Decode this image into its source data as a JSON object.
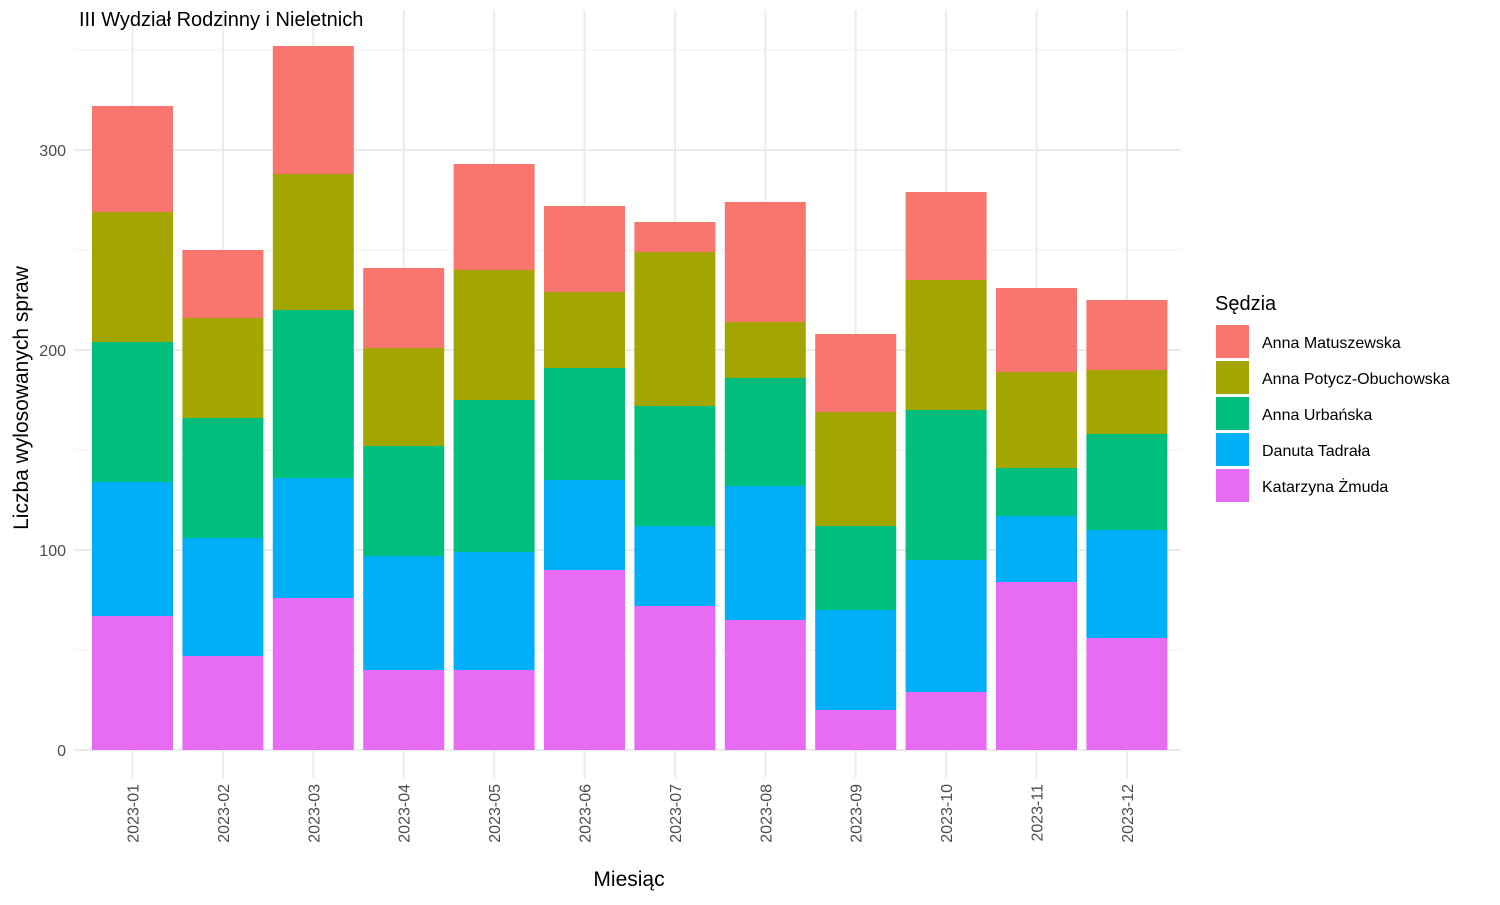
{
  "chart_data": {
    "type": "bar",
    "stacked": true,
    "title": "III Wydział Rodzinny i Nieletnich",
    "xlabel": "Miesiąc",
    "ylabel": "Liczba wylosowanych spraw",
    "ylim": [
      0,
      360
    ],
    "yticks": [
      0,
      100,
      200,
      300
    ],
    "grid": true,
    "legend": {
      "title": "Sędzia",
      "placement": "right"
    },
    "categories": [
      "2023-01",
      "2023-02",
      "2023-03",
      "2023-04",
      "2023-05",
      "2023-06",
      "2023-07",
      "2023-08",
      "2023-09",
      "2023-10",
      "2023-11",
      "2023-12"
    ],
    "series": [
      {
        "name": "Katarzyna Żmuda",
        "color": "#E76BF3",
        "values": [
          67,
          47,
          76,
          40,
          40,
          90,
          72,
          65,
          20,
          29,
          84,
          56
        ]
      },
      {
        "name": "Danuta Tadrała",
        "color": "#00B0F6",
        "values": [
          67,
          59,
          60,
          57,
          59,
          45,
          40,
          67,
          50,
          66,
          33,
          54
        ]
      },
      {
        "name": "Anna Urbańska",
        "color": "#00BF7D",
        "values": [
          70,
          60,
          84,
          55,
          76,
          56,
          60,
          54,
          42,
          75,
          24,
          48
        ]
      },
      {
        "name": "Anna Potycz-Obuchowska",
        "color": "#A3A500",
        "values": [
          65,
          50,
          68,
          49,
          65,
          38,
          77,
          28,
          57,
          65,
          48,
          32
        ]
      },
      {
        "name": "Anna Matuszewska",
        "color": "#F8766D",
        "values": [
          53,
          34,
          64,
          40,
          53,
          43,
          15,
          60,
          39,
          44,
          42,
          35
        ]
      }
    ],
    "legend_order": [
      "Anna Matuszewska",
      "Anna Potycz-Obuchowska",
      "Anna Urbańska",
      "Danuta Tadrała",
      "Katarzyna Żmuda"
    ]
  }
}
